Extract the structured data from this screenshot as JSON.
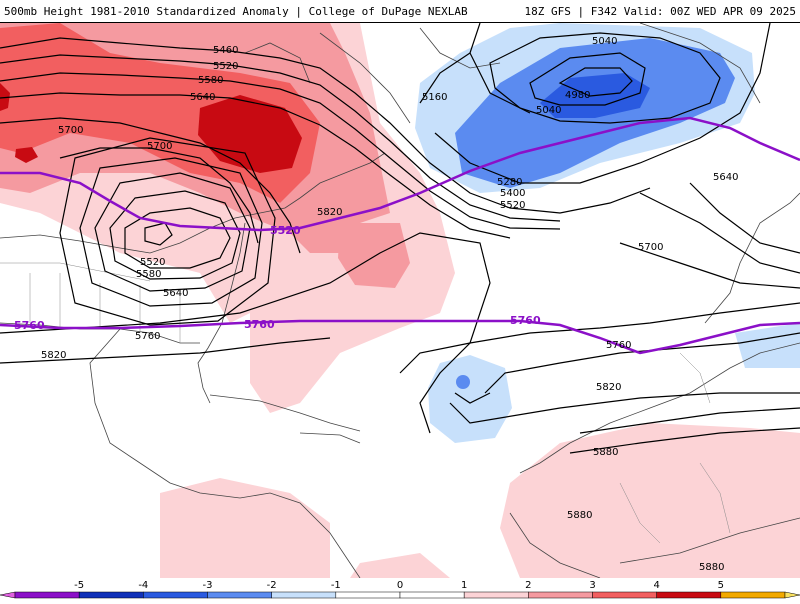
{
  "header": {
    "left": "500mb Height 1981-2010 Standardized Anomaly | College of DuPage NEXLAB",
    "right": "18Z GFS | F342 Valid: 00Z WED APR 09 2025"
  },
  "map": {
    "height_labels": [
      "5460",
      "5520",
      "5580",
      "5640",
      "5700",
      "5700",
      "5520",
      "5580",
      "5640",
      "5760",
      "5820",
      "5820",
      "5040",
      "5160",
      "4980",
      "5040",
      "5280",
      "5400",
      "5520",
      "5640",
      "5700",
      "5760",
      "5820",
      "5880",
      "5880",
      "5880"
    ],
    "purple_labels": [
      "5520",
      "5760",
      "5760",
      "5760"
    ]
  },
  "colorbar": {
    "ticks": [
      "-5",
      "-4",
      "-3",
      "-2",
      "-1",
      "0",
      "1",
      "2",
      "3",
      "4",
      "5"
    ],
    "colors": {
      "lt5": "#e060e0",
      "m5": "#8b10c8",
      "m4": "#1030b8",
      "m3": "#2a5ae0",
      "m2": "#5b8bf0",
      "m1": "#c7e0fb",
      "zero": "#ffffff",
      "p1": "#fcd3d6",
      "p2": "#f59aa0",
      "p3": "#f25f60",
      "p4": "#c80a12",
      "p5": "#f2a900",
      "gt5": "#f8e060"
    }
  }
}
